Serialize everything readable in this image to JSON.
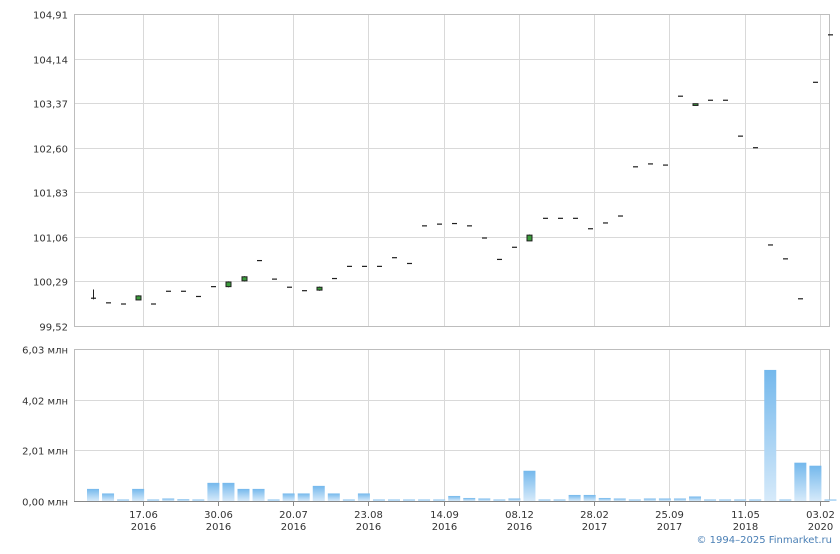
{
  "chart_data": [
    {
      "type": "candlestick",
      "title": "",
      "ylim": [
        99.52,
        104.91
      ],
      "y_ticks": [
        "99,52",
        "100,29",
        "101,06",
        "101,83",
        "102,60",
        "103,37",
        "104,14",
        "104,91"
      ],
      "y_tick_values": [
        99.52,
        100.29,
        101.06,
        101.83,
        102.6,
        103.37,
        104.14,
        104.91
      ],
      "grid": true,
      "colors": {
        "up_fill": "#3c9c3c",
        "wick": "#1f1f1f"
      },
      "series": [
        {
          "name": "",
          "ohlc": [
            [
              100.0,
              100.15,
              99.98,
              99.98
            ],
            [
              99.92,
              99.92,
              99.92,
              99.92
            ],
            [
              99.9,
              99.9,
              99.9,
              99.9
            ],
            [
              99.97,
              100.05,
              99.97,
              100.04
            ],
            [
              99.9,
              99.9,
              99.9,
              99.9
            ],
            [
              100.12,
              100.12,
              100.12,
              100.12
            ],
            [
              100.12,
              100.12,
              100.12,
              100.12
            ],
            [
              100.03,
              100.03,
              100.03,
              100.03
            ],
            [
              100.2,
              100.2,
              100.2,
              100.2
            ],
            [
              100.2,
              100.29,
              100.19,
              100.28
            ],
            [
              100.3,
              100.38,
              100.29,
              100.37
            ],
            [
              100.65,
              100.65,
              100.65,
              100.65
            ],
            [
              100.33,
              100.33,
              100.33,
              100.33
            ],
            [
              100.19,
              100.19,
              100.19,
              100.19
            ],
            [
              100.13,
              100.13,
              100.13,
              100.13
            ],
            [
              100.14,
              100.2,
              100.13,
              100.19
            ],
            [
              100.34,
              100.34,
              100.34,
              100.34
            ],
            [
              100.55,
              100.55,
              100.55,
              100.55
            ],
            [
              100.55,
              100.55,
              100.55,
              100.55
            ],
            [
              100.55,
              100.55,
              100.55,
              100.55
            ],
            [
              100.7,
              100.7,
              100.7,
              100.7
            ],
            [
              100.6,
              100.6,
              100.6,
              100.6
            ],
            [
              101.25,
              101.25,
              101.25,
              101.25
            ],
            [
              101.28,
              101.28,
              101.28,
              101.28
            ],
            [
              101.29,
              101.29,
              101.29,
              101.29
            ],
            [
              101.25,
              101.25,
              101.25,
              101.25
            ],
            [
              101.04,
              101.04,
              101.04,
              101.04
            ],
            [
              100.67,
              100.67,
              100.67,
              100.67
            ],
            [
              100.88,
              100.88,
              100.88,
              100.88
            ],
            [
              100.99,
              101.1,
              100.99,
              101.09
            ],
            [
              101.38,
              101.38,
              101.38,
              101.38
            ],
            [
              101.38,
              101.38,
              101.38,
              101.38
            ],
            [
              101.38,
              101.38,
              101.38,
              101.38
            ],
            [
              101.2,
              101.2,
              101.2,
              101.2
            ],
            [
              101.3,
              101.3,
              101.3,
              101.3
            ],
            [
              101.42,
              101.42,
              101.42,
              101.42
            ],
            [
              102.27,
              102.27,
              102.27,
              102.27
            ],
            [
              102.32,
              102.32,
              102.32,
              102.32
            ],
            [
              102.3,
              102.3,
              102.3,
              102.3
            ],
            [
              103.49,
              103.49,
              103.49,
              103.49
            ],
            [
              103.36,
              103.36,
              103.33,
              103.33
            ],
            [
              103.42,
              103.42,
              103.42,
              103.42
            ],
            [
              103.42,
              103.42,
              103.42,
              103.42
            ],
            [
              102.8,
              102.8,
              102.8,
              102.8
            ],
            [
              102.6,
              102.6,
              102.6,
              102.6
            ],
            [
              100.92,
              100.92,
              100.92,
              100.92
            ],
            [
              100.68,
              100.68,
              100.68,
              100.68
            ],
            [
              99.99,
              99.99,
              99.99,
              99.99
            ],
            [
              103.73,
              103.73,
              103.73,
              103.73
            ],
            [
              104.55,
              104.55,
              104.55,
              104.55
            ]
          ]
        }
      ]
    },
    {
      "type": "bar",
      "title": "",
      "ylim": [
        0,
        6.03
      ],
      "y_ticks": [
        "0,00 млн",
        "2,01 млн",
        "4,02 млн",
        "6,03 млн"
      ],
      "y_tick_values": [
        0,
        2.01,
        4.02,
        6.03
      ],
      "grid": true,
      "colors": {
        "bar_top": "#74b8ec",
        "bar_bottom": "#d6eafa"
      },
      "x_tick_labels": [
        {
          "index": 3.3,
          "date": "17.06",
          "year": "2016"
        },
        {
          "index": 8.3,
          "date": "30.06",
          "year": "2016"
        },
        {
          "index": 13.3,
          "date": "20.07",
          "year": "2016"
        },
        {
          "index": 18.3,
          "date": "23.08",
          "year": "2016"
        },
        {
          "index": 23.3,
          "date": "14.09",
          "year": "2016"
        },
        {
          "index": 28.3,
          "date": "08.12",
          "year": "2016"
        },
        {
          "index": 33.3,
          "date": "28.02",
          "year": "2017"
        },
        {
          "index": 38.3,
          "date": "25.09",
          "year": "2017"
        },
        {
          "index": 43.3,
          "date": "11.05",
          "year": "2018"
        },
        {
          "index": 48.3,
          "date": "03.02",
          "year": "2020"
        }
      ],
      "series": [
        {
          "name": "",
          "values": [
            0.48,
            0.3,
            0.06,
            0.48,
            0.06,
            0.1,
            0.07,
            0.06,
            0.72,
            0.72,
            0.48,
            0.48,
            0.06,
            0.3,
            0.3,
            0.6,
            0.3,
            0.06,
            0.3,
            0.06,
            0.06,
            0.06,
            0.06,
            0.06,
            0.2,
            0.12,
            0.1,
            0.06,
            0.1,
            1.2,
            0.06,
            0.06,
            0.24,
            0.24,
            0.12,
            0.1,
            0.06,
            0.1,
            0.1,
            0.1,
            0.18,
            0.06,
            0.06,
            0.06,
            0.06,
            5.2,
            0.06,
            1.52,
            1.4,
            0.06
          ]
        }
      ]
    }
  ],
  "footer": {
    "credit": "© 1994–2025 Finmarket.ru"
  }
}
